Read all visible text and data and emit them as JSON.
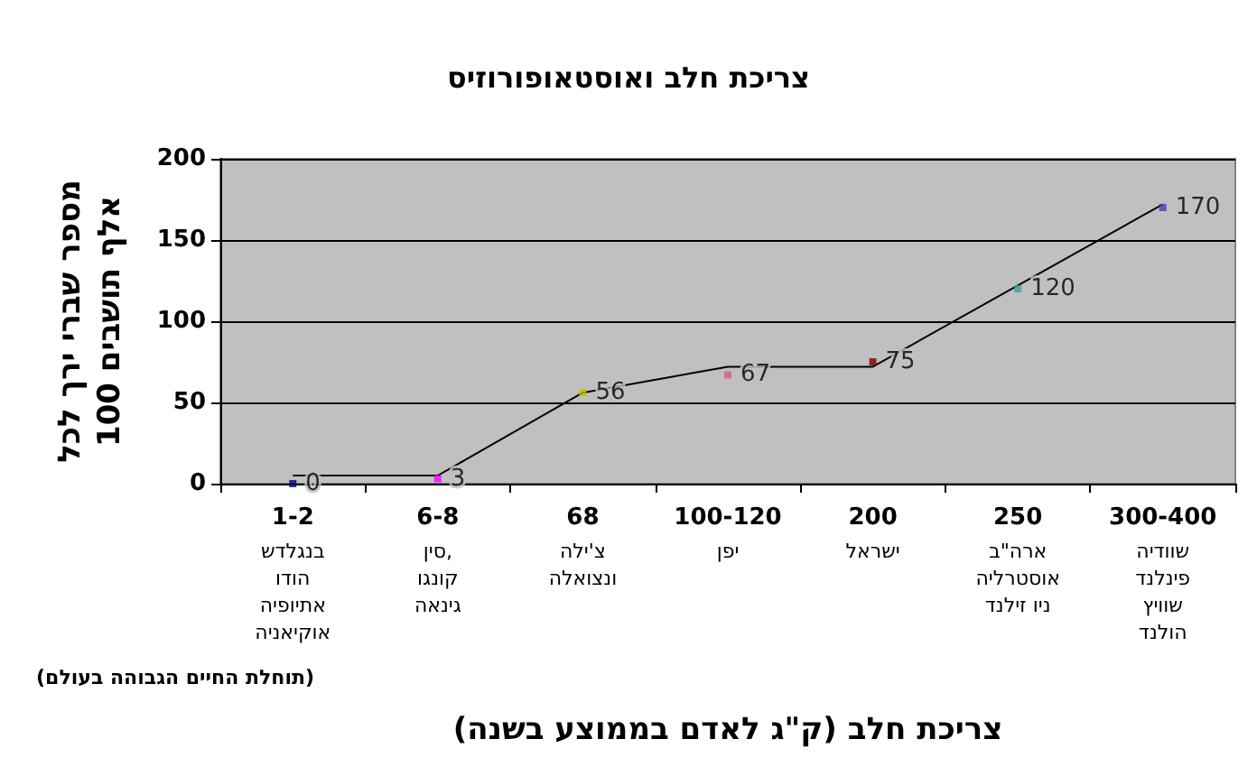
{
  "chart_data": {
    "type": "scatter",
    "title": "צריכת חלב ואוסטאופורוזיס",
    "xlabel": "צריכת חלב (ק\"ג לאדם בממוצע בשנה)",
    "ylabel": "מספר שברי ירך לכל\n100 אלף תושבים",
    "categories": [
      "1-2\nבנגלדש\nהודו\nאתיופיה\nאוקיאניה",
      "6-8\nסין,\nקונגו\nגינאה",
      "68\nצ'ילה\nונצואלה",
      "100-120\nיפן",
      "200\nישראל",
      "250\nארה\"ב\nאוסטרליה\nניו זילנד",
      "300-400\nשוודיה\nפינלנד\nשוויץ\nהולנד"
    ],
    "series": [
      {
        "colors": [
          "#000080",
          "#ff00ff",
          "#c0c000",
          "#d06080",
          "#800000",
          "#40a0a0",
          "#4040c0"
        ],
        "values": [
          0,
          3,
          56,
          67,
          75,
          120,
          170
        ],
        "value_labels": [
          "0",
          "3",
          "56",
          "67",
          "75",
          "120",
          "170"
        ]
      },
      {
        "type": "line",
        "color": "#000000",
        "marker": "none",
        "values": [
          5,
          5,
          56,
          72,
          72,
          122,
          172
        ]
      }
    ],
    "ylim": [
      0,
      200
    ],
    "yticks": [
      0,
      50,
      100,
      150,
      200
    ],
    "grid": "y",
    "annotations": [
      "(תוחלת החיים הגבוהה בעולם)"
    ]
  }
}
